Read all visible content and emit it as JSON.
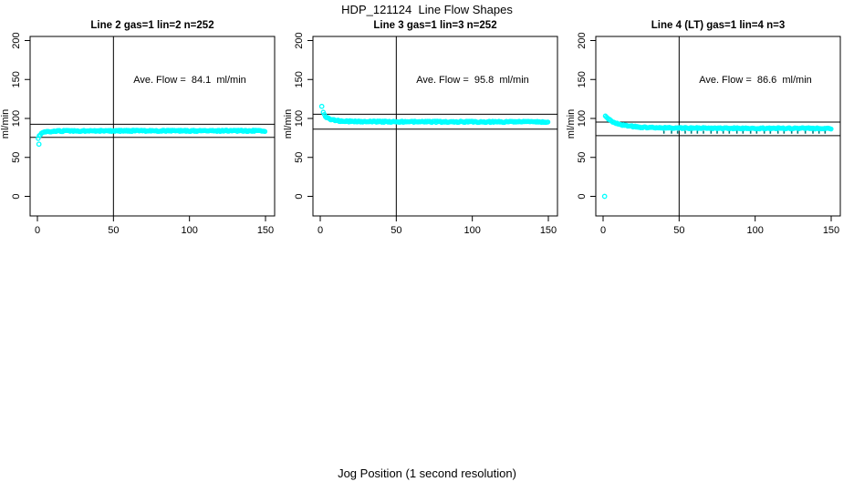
{
  "figure": {
    "title": "HDP_121124  Line Flow Shapes",
    "xlabel": "Jog Position (1 second resolution)",
    "background": "#ffffff",
    "line_color": "#000000"
  },
  "chart_data": [
    {
      "type": "scatter",
      "title": "Line 2 gas=1 lin=2 n=252",
      "annotation": "Ave. Flow =  84.1  ml/min",
      "ave_flow": 84.1,
      "ylabel": "ml/min",
      "xlabel": "",
      "x_ticks": [
        0,
        50,
        100,
        150
      ],
      "y_ticks": [
        0,
        50,
        100,
        150,
        200
      ],
      "xlim": [
        0,
        150
      ],
      "ylim": [
        0,
        200
      ],
      "grid": false,
      "vline_x": 50,
      "hlines": [
        92.5,
        75.7
      ],
      "point_color": "#00ffff",
      "marker": "open-circle",
      "band_keypoints": [
        [
          0.5,
          74
        ],
        [
          1,
          76.5
        ],
        [
          2,
          79.5
        ],
        [
          3,
          81
        ],
        [
          5,
          82.3
        ],
        [
          8,
          83.2
        ],
        [
          12,
          83.7
        ],
        [
          20,
          84
        ],
        [
          60,
          84.1
        ],
        [
          150,
          84.1
        ]
      ],
      "outliers": [
        [
          1,
          67
        ]
      ],
      "under_ticks": {
        "y": 0,
        "xs": []
      }
    },
    {
      "type": "scatter",
      "title": "Line 3 gas=1 lin=3 n=252",
      "annotation": "Ave. Flow =  95.8  ml/min",
      "ave_flow": 95.8,
      "ylabel": "ml/min",
      "xlabel": "",
      "x_ticks": [
        0,
        50,
        100,
        150
      ],
      "y_ticks": [
        0,
        50,
        100,
        150,
        200
      ],
      "xlim": [
        0,
        150
      ],
      "ylim": [
        0,
        200
      ],
      "grid": false,
      "vline_x": 50,
      "hlines": [
        105.4,
        86.2
      ],
      "point_color": "#00ffff",
      "marker": "open-circle",
      "band_keypoints": [
        [
          2,
          107.5
        ],
        [
          3,
          104
        ],
        [
          4,
          101.5
        ],
        [
          6,
          99.3
        ],
        [
          9,
          97.8
        ],
        [
          13,
          96.8
        ],
        [
          20,
          96.2
        ],
        [
          40,
          95.9
        ],
        [
          80,
          95.7
        ],
        [
          150,
          95.5
        ]
      ],
      "outliers": [
        [
          1,
          115.5
        ]
      ],
      "under_ticks": {
        "y": 0,
        "xs": []
      }
    },
    {
      "type": "scatter",
      "title": "Line 4 (LT) gas=1 lin=4 n=3",
      "annotation": "Ave. Flow =  86.6  ml/min",
      "ave_flow": 86.6,
      "ylabel": "ml/min",
      "xlabel": "",
      "x_ticks": [
        0,
        50,
        100,
        150
      ],
      "y_ticks": [
        0,
        50,
        100,
        150,
        200
      ],
      "xlim": [
        0,
        150
      ],
      "ylim": [
        0,
        200
      ],
      "grid": false,
      "vline_x": 50,
      "hlines": [
        95.3,
        77.9
      ],
      "point_color": "#00ffff",
      "marker": "open-circle",
      "band_keypoints": [
        [
          1.5,
          103
        ],
        [
          3,
          100
        ],
        [
          5,
          97
        ],
        [
          8,
          94.5
        ],
        [
          12,
          92
        ],
        [
          18,
          90
        ],
        [
          25,
          88.8
        ],
        [
          35,
          88
        ],
        [
          60,
          87.6
        ],
        [
          100,
          87.3
        ],
        [
          150,
          87.2
        ]
      ],
      "outliers": [
        [
          1,
          0
        ]
      ],
      "under_ticks": {
        "y": 84.2,
        "xs": [
          40,
          45,
          49,
          54,
          58,
          62,
          66,
          71,
          75,
          79,
          83,
          88,
          92,
          97,
          101,
          106,
          110,
          115,
          119,
          124,
          128,
          133,
          138,
          142,
          146
        ]
      }
    }
  ]
}
